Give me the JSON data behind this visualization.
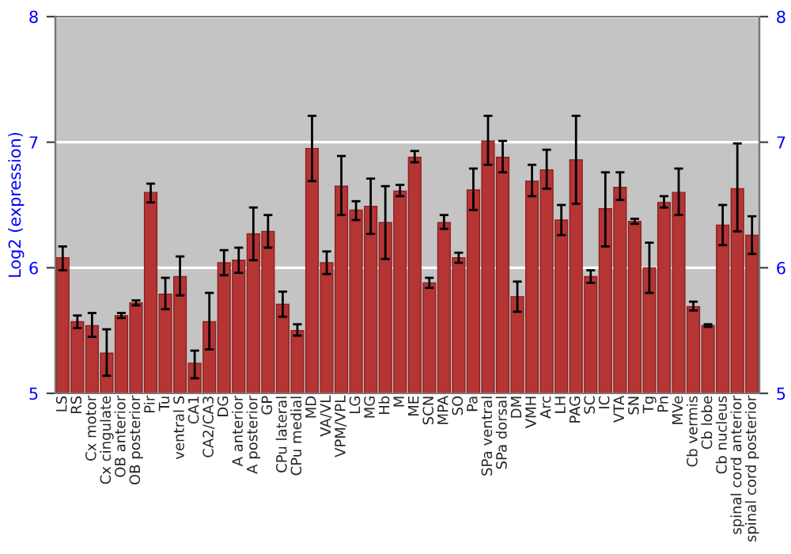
{
  "chart_data": {
    "type": "bar",
    "ylabel": "Log2 (expression)",
    "categories": [
      "LS",
      "RS",
      "Cx motor",
      "Cx cingulate",
      "OB anterior",
      "OB posterior",
      "Pir",
      "Tu",
      "ventral S",
      "CA1",
      "CA2/CA3",
      "DG",
      "A anterior",
      "A posterior",
      "GP",
      "CPu lateral",
      "CPu medial",
      "MD",
      "VA/VL",
      "VPM/VPL",
      "LG",
      "MG",
      "Hb",
      "M",
      "ME",
      "SCN",
      "MPA",
      "SO",
      "Pa",
      "SPa ventral",
      "SPa dorsal",
      "DM",
      "VMH",
      "Arc",
      "LH",
      "PAG",
      "SC",
      "IC",
      "VTA",
      "SN",
      "Tg",
      "Pn",
      "MVe",
      "Cb vermis",
      "Cb lobe",
      "Cb nucleus",
      "spinal cord anterior",
      "spinal cord posterior"
    ],
    "series": [
      {
        "color": "#b53434",
        "values": [
          6.08,
          5.57,
          5.54,
          5.32,
          5.62,
          5.72,
          6.6,
          5.79,
          5.93,
          5.24,
          5.57,
          6.04,
          6.06,
          6.27,
          6.29,
          5.71,
          5.5,
          6.95,
          6.04,
          6.65,
          6.46,
          6.49,
          6.36,
          6.61,
          6.88,
          5.88,
          6.36,
          6.08,
          6.62,
          7.01,
          6.88,
          5.77,
          6.69,
          6.78,
          6.38,
          6.86,
          5.93,
          6.47,
          6.64,
          6.37,
          6.0,
          6.52,
          6.6,
          5.69,
          5.54,
          6.34,
          6.63,
          6.26
        ],
        "errors": [
          [
            5.98,
            6.17
          ],
          [
            5.52,
            5.62
          ],
          [
            5.45,
            5.64
          ],
          [
            5.14,
            5.51
          ],
          [
            5.6,
            5.64
          ],
          [
            5.7,
            5.74
          ],
          [
            6.52,
            6.67
          ],
          [
            5.67,
            5.92
          ],
          [
            5.78,
            6.09
          ],
          [
            5.12,
            5.34
          ],
          [
            5.35,
            5.8
          ],
          [
            5.94,
            6.14
          ],
          [
            5.96,
            6.16
          ],
          [
            6.06,
            6.48
          ],
          [
            6.16,
            6.42
          ],
          [
            5.61,
            5.81
          ],
          [
            5.46,
            5.55
          ],
          [
            6.69,
            7.21
          ],
          [
            5.95,
            6.13
          ],
          [
            6.42,
            6.89
          ],
          [
            6.38,
            6.53
          ],
          [
            6.27,
            6.71
          ],
          [
            6.07,
            6.65
          ],
          [
            6.57,
            6.66
          ],
          [
            6.84,
            6.93
          ],
          [
            5.84,
            5.92
          ],
          [
            6.31,
            6.42
          ],
          [
            6.04,
            6.12
          ],
          [
            6.46,
            6.79
          ],
          [
            6.82,
            7.21
          ],
          [
            6.76,
            7.01
          ],
          [
            5.65,
            5.89
          ],
          [
            6.57,
            6.82
          ],
          [
            6.63,
            6.94
          ],
          [
            6.26,
            6.5
          ],
          [
            6.51,
            7.21
          ],
          [
            5.88,
            5.98
          ],
          [
            6.17,
            6.76
          ],
          [
            6.54,
            6.76
          ],
          [
            6.35,
            6.39
          ],
          [
            5.8,
            6.2
          ],
          [
            6.48,
            6.57
          ],
          [
            6.42,
            6.79
          ],
          [
            5.66,
            5.73
          ],
          [
            5.53,
            5.55
          ],
          [
            6.18,
            6.5
          ],
          [
            6.29,
            6.99
          ],
          [
            6.11,
            6.41
          ]
        ]
      }
    ],
    "ylim": [
      5,
      8
    ],
    "yticks": [
      5,
      6,
      7,
      8
    ],
    "y2lim": [
      5,
      8
    ],
    "y2ticks": [
      5,
      6,
      7,
      8
    ],
    "grid": "y",
    "legend": false
  }
}
